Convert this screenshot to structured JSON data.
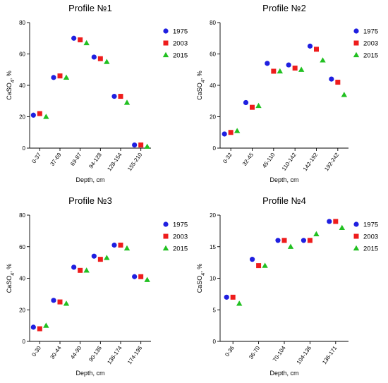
{
  "chart_data": [
    {
      "type": "scatter",
      "title": "Profile №1",
      "xlabel": "Depth, cm",
      "ylabel_main": "CaSO",
      "ylabel_sub": "4",
      "ylabel_tail": ", %",
      "categories": [
        "0-37",
        "37-69",
        "69-87",
        "94-128",
        "128-154",
        "155-210"
      ],
      "ylim": [
        0,
        80
      ],
      "yticks": [
        0,
        20,
        40,
        60,
        80
      ],
      "legend_position": "top-right",
      "series": [
        {
          "name": "1975",
          "marker": "circle",
          "color": "#1f1fe0",
          "values": [
            21,
            45,
            70,
            58,
            33,
            2
          ]
        },
        {
          "name": "2003",
          "marker": "square",
          "color": "#ee1c1c",
          "values": [
            22,
            46,
            69,
            57,
            33,
            2
          ]
        },
        {
          "name": "2015",
          "marker": "triangle",
          "color": "#21c021",
          "values": [
            20,
            45,
            67,
            55,
            29,
            1
          ]
        }
      ]
    },
    {
      "type": "scatter",
      "title": "Profile №2",
      "xlabel": "Depth, cm",
      "ylabel_main": "CaSO",
      "ylabel_sub": "4",
      "ylabel_tail": ", %",
      "categories": [
        "0-32",
        "32-45",
        "45-110",
        "110-142",
        "142-192",
        "192-242"
      ],
      "ylim": [
        0,
        80
      ],
      "yticks": [
        0,
        20,
        40,
        60,
        80
      ],
      "legend_position": "top-right",
      "series": [
        {
          "name": "1975",
          "marker": "circle",
          "color": "#1f1fe0",
          "values": [
            9,
            29,
            54,
            53,
            65,
            44
          ]
        },
        {
          "name": "2003",
          "marker": "square",
          "color": "#ee1c1c",
          "values": [
            10,
            26,
            49,
            51,
            63,
            42
          ]
        },
        {
          "name": "2015",
          "marker": "triangle",
          "color": "#21c021",
          "values": [
            11,
            27,
            49,
            50,
            56,
            34
          ]
        }
      ]
    },
    {
      "type": "scatter",
      "title": "Profile №3",
      "xlabel": "Depth, cm",
      "ylabel_main": "CaSO",
      "ylabel_sub": "4",
      "ylabel_tail": ", %",
      "categories": [
        "0-30",
        "30-44",
        "44-90",
        "90-136",
        "136-174",
        "174-196"
      ],
      "ylim": [
        0,
        80
      ],
      "yticks": [
        0,
        20,
        40,
        60,
        80
      ],
      "legend_position": "top-right",
      "series": [
        {
          "name": "1975",
          "marker": "circle",
          "color": "#1f1fe0",
          "values": [
            9,
            26,
            47,
            54,
            61,
            41
          ]
        },
        {
          "name": "2003",
          "marker": "square",
          "color": "#ee1c1c",
          "values": [
            8,
            25,
            45,
            52,
            61,
            41
          ]
        },
        {
          "name": "2015",
          "marker": "triangle",
          "color": "#21c021",
          "values": [
            10,
            24,
            45,
            53,
            59,
            39
          ]
        }
      ]
    },
    {
      "type": "scatter",
      "title": "Profile №4",
      "xlabel": "Depth, cm",
      "ylabel_main": "CaSO",
      "ylabel_sub": "4",
      "ylabel_tail": ", %",
      "categories": [
        "0-36",
        "36-70",
        "70-104",
        "104-136",
        "136-171"
      ],
      "ylim": [
        0,
        20
      ],
      "yticks": [
        0,
        5,
        10,
        15,
        20
      ],
      "legend_position": "top-right",
      "series": [
        {
          "name": "1975",
          "marker": "circle",
          "color": "#1f1fe0",
          "values": [
            7,
            13,
            16,
            16,
            19
          ]
        },
        {
          "name": "2003",
          "marker": "square",
          "color": "#ee1c1c",
          "values": [
            7,
            12,
            16,
            16,
            19
          ]
        },
        {
          "name": "2015",
          "marker": "triangle",
          "color": "#21c021",
          "values": [
            6,
            12,
            15,
            17,
            18
          ]
        }
      ]
    }
  ]
}
